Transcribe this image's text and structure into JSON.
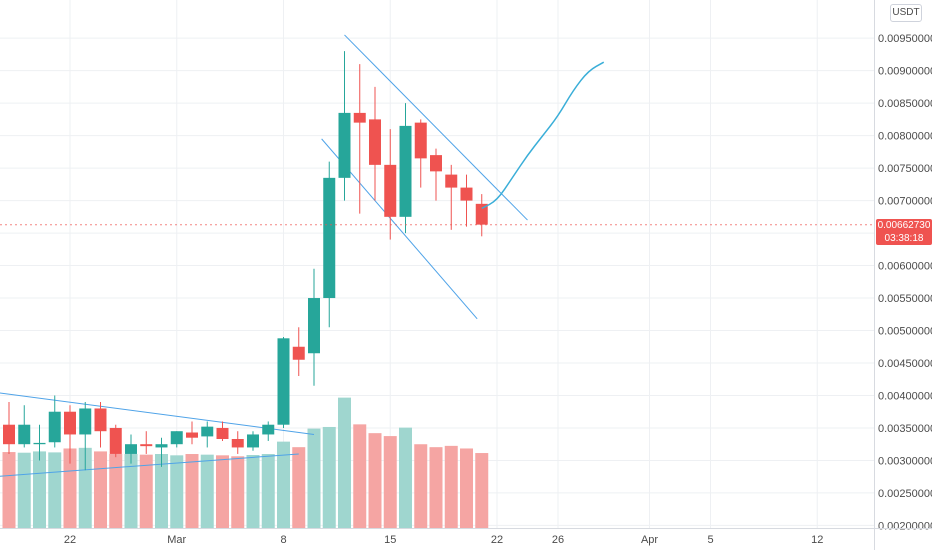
{
  "chart": {
    "quote_currency": "USDT",
    "last_price": "0.00662730",
    "countdown": "03:38:18",
    "colors": {
      "up": "#26a69a",
      "down": "#ef5350",
      "up_volume": "#9fd6cf",
      "down_volume": "#f5a5a3",
      "trendline": "#4fa3e8",
      "projection": "#3aaed8",
      "grid": "#eef0f3"
    }
  },
  "chart_data": {
    "type": "candlestick",
    "x_tick_labels": [
      {
        "day": 22,
        "label": "22"
      },
      {
        "day": 29,
        "label": "Mar"
      },
      {
        "day": 36,
        "label": "8"
      },
      {
        "day": 43,
        "label": "15"
      },
      {
        "day": 50,
        "label": "22"
      },
      {
        "day": 54,
        "label": "26"
      },
      {
        "day": 60,
        "label": "Apr"
      },
      {
        "day": 64,
        "label": "5"
      },
      {
        "day": 71,
        "label": "12"
      }
    ],
    "y_tick_labels": [
      "0.00950000",
      "0.00900000",
      "0.00850000",
      "0.00800000",
      "0.00750000",
      "0.00700000",
      "0.00650000",
      "0.00600000",
      "0.00550000",
      "0.00500000",
      "0.00450000",
      "0.00400000",
      "0.00350000",
      "0.00300000",
      "0.00250000",
      "0.00200000"
    ],
    "y_range": [
      0.00196,
      0.00998
    ],
    "candles": [
      {
        "d": 18,
        "o": 0.00355,
        "h": 0.0039,
        "l": 0.0031,
        "c": 0.00325
      },
      {
        "d": 19,
        "o": 0.00325,
        "h": 0.00385,
        "l": 0.0032,
        "c": 0.00355
      },
      {
        "d": 20,
        "o": 0.00325,
        "h": 0.00355,
        "l": 0.003,
        "c": 0.00327
      },
      {
        "d": 21,
        "o": 0.00328,
        "h": 0.004,
        "l": 0.0032,
        "c": 0.00375
      },
      {
        "d": 22,
        "o": 0.00375,
        "h": 0.00385,
        "l": 0.00295,
        "c": 0.0034
      },
      {
        "d": 23,
        "o": 0.0034,
        "h": 0.0039,
        "l": 0.00285,
        "c": 0.0038
      },
      {
        "d": 24,
        "o": 0.0038,
        "h": 0.0039,
        "l": 0.0032,
        "c": 0.00345
      },
      {
        "d": 25,
        "o": 0.0035,
        "h": 0.00355,
        "l": 0.00305,
        "c": 0.0031
      },
      {
        "d": 26,
        "o": 0.0031,
        "h": 0.0034,
        "l": 0.00295,
        "c": 0.00325
      },
      {
        "d": 27,
        "o": 0.00325,
        "h": 0.00345,
        "l": 0.0031,
        "c": 0.00322
      },
      {
        "d": 28,
        "o": 0.0032,
        "h": 0.00335,
        "l": 0.0029,
        "c": 0.00325
      },
      {
        "d": 29,
        "o": 0.00325,
        "h": 0.00345,
        "l": 0.0032,
        "c": 0.00345
      },
      {
        "d": 30,
        "o": 0.00343,
        "h": 0.0036,
        "l": 0.00325,
        "c": 0.00335
      },
      {
        "d": 31,
        "o": 0.00337,
        "h": 0.0036,
        "l": 0.0032,
        "c": 0.00352
      },
      {
        "d": 32,
        "o": 0.0035,
        "h": 0.0036,
        "l": 0.0033,
        "c": 0.00333
      },
      {
        "d": 33,
        "o": 0.00333,
        "h": 0.00345,
        "l": 0.0031,
        "c": 0.0032
      },
      {
        "d": 34,
        "o": 0.0032,
        "h": 0.00345,
        "l": 0.00315,
        "c": 0.0034
      },
      {
        "d": 35,
        "o": 0.0034,
        "h": 0.0036,
        "l": 0.0033,
        "c": 0.00355
      },
      {
        "d": 36,
        "o": 0.00355,
        "h": 0.0049,
        "l": 0.0035,
        "c": 0.00488
      },
      {
        "d": 37,
        "o": 0.00475,
        "h": 0.00505,
        "l": 0.0043,
        "c": 0.00455
      },
      {
        "d": 38,
        "o": 0.00465,
        "h": 0.00595,
        "l": 0.00415,
        "c": 0.0055
      },
      {
        "d": 39,
        "o": 0.0055,
        "h": 0.0076,
        "l": 0.00505,
        "c": 0.00735
      },
      {
        "d": 40,
        "o": 0.00735,
        "h": 0.0093,
        "l": 0.007,
        "c": 0.00835
      },
      {
        "d": 41,
        "o": 0.00835,
        "h": 0.0091,
        "l": 0.0068,
        "c": 0.0082
      },
      {
        "d": 42,
        "o": 0.00825,
        "h": 0.00875,
        "l": 0.007,
        "c": 0.00755
      },
      {
        "d": 43,
        "o": 0.00755,
        "h": 0.0081,
        "l": 0.0064,
        "c": 0.00675
      },
      {
        "d": 44,
        "o": 0.00675,
        "h": 0.0085,
        "l": 0.0065,
        "c": 0.00815
      },
      {
        "d": 45,
        "o": 0.0082,
        "h": 0.00825,
        "l": 0.0072,
        "c": 0.00765
      },
      {
        "d": 46,
        "o": 0.0077,
        "h": 0.0078,
        "l": 0.007,
        "c": 0.00745
      },
      {
        "d": 47,
        "o": 0.0074,
        "h": 0.00755,
        "l": 0.00655,
        "c": 0.0072
      },
      {
        "d": 48,
        "o": 0.0072,
        "h": 0.0074,
        "l": 0.0066,
        "c": 0.007
      },
      {
        "d": 49,
        "o": 0.00695,
        "h": 0.0071,
        "l": 0.00645,
        "c": 0.00663
      }
    ],
    "volume_scale": [
      0,
      0.00405
    ],
    "volume": [
      0.00233,
      0.00231,
      0.00235,
      0.00232,
      0.00244,
      0.00246,
      0.00235,
      0.00227,
      0.00227,
      0.00225,
      0.00227,
      0.00223,
      0.00227,
      0.00225,
      0.00223,
      0.0022,
      0.00224,
      0.00227,
      0.00265,
      0.00248,
      0.00305,
      0.0031,
      0.004,
      0.00318,
      0.00291,
      0.00282,
      0.00308,
      0.00257,
      0.00248,
      0.00252,
      0.00244,
      0.0023
    ],
    "trendlines": [
      {
        "points": [
          [
            17,
            0.00405
          ],
          [
            38,
            0.0034
          ]
        ]
      },
      {
        "points": [
          [
            17,
            0.00275
          ],
          [
            37,
            0.0031
          ]
        ]
      },
      {
        "points": [
          [
            40,
            0.00955
          ],
          [
            52,
            0.0067
          ]
        ]
      },
      {
        "points": [
          [
            38.5,
            0.00795
          ],
          [
            48.7,
            0.00518
          ]
        ]
      }
    ],
    "projection": [
      [
        49,
        0.00688
      ],
      [
        50,
        0.007
      ],
      [
        51,
        0.00735
      ],
      [
        52,
        0.0077
      ],
      [
        53,
        0.008
      ],
      [
        54,
        0.0083
      ],
      [
        55,
        0.0087
      ],
      [
        56,
        0.009
      ],
      [
        57,
        0.00913
      ]
    ],
    "last_price_value": 0.0066273,
    "grid": true
  }
}
